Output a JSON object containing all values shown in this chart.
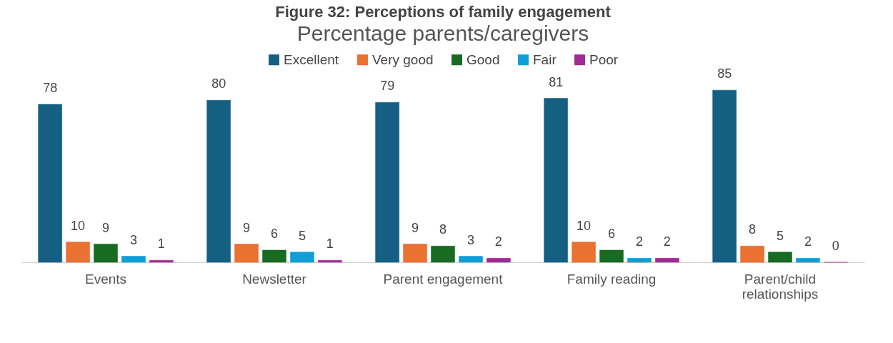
{
  "chart_data": {
    "type": "bar",
    "title": "Figure 32: Perceptions of family engagement",
    "subtitle": "Percentage parents/caregivers",
    "categories": [
      "Events",
      "Newsletter",
      "Parent engagement",
      "Family reading",
      "Parent/child relationships"
    ],
    "series": [
      {
        "name": "Excellent",
        "color": "#156082",
        "values": [
          78,
          80,
          79,
          81,
          85
        ]
      },
      {
        "name": "Very good",
        "color": "#e97132",
        "values": [
          10,
          9,
          9,
          10,
          8
        ]
      },
      {
        "name": "Good",
        "color": "#196b24",
        "values": [
          9,
          6,
          8,
          6,
          5
        ]
      },
      {
        "name": "Fair",
        "color": "#0f9ed5",
        "values": [
          3,
          5,
          3,
          2,
          2
        ]
      },
      {
        "name": "Poor",
        "color": "#a02b93",
        "values": [
          1,
          1,
          2,
          2,
          0
        ]
      }
    ],
    "data_labels": true,
    "legend": "top",
    "grid": false
  }
}
